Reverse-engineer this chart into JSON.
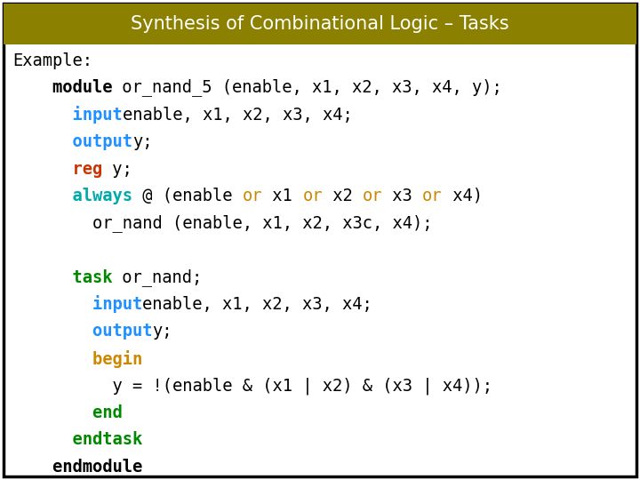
{
  "title": "Synthesis of Combinational Logic – Tasks",
  "title_bg_top": "#8B8000",
  "title_bg_bot": "#6B6000",
  "title_color": "#FFFFFF",
  "outer_bg": "#FFFFFF",
  "border_color": "#000000",
  "figsize": [
    7.2,
    5.4
  ],
  "dpi": 100,
  "fontsize": 13.5,
  "title_fontsize": 15,
  "lines": [
    [
      {
        "t": "Example:",
        "c": "#000000",
        "b": false
      }
    ],
    [
      {
        "t": "    module",
        "c": "#000000",
        "b": true
      },
      {
        "t": " or_nand_5 (enable, x1, x2, x3, x4, y);",
        "c": "#000000",
        "b": false
      }
    ],
    [
      {
        "t": "      input",
        "c": "#1E90FF",
        "b": true
      },
      {
        "t": "enable, x1, x2, x3, x4;",
        "c": "#000000",
        "b": false
      }
    ],
    [
      {
        "t": "      output",
        "c": "#1E90FF",
        "b": true
      },
      {
        "t": "y;",
        "c": "#000000",
        "b": false
      }
    ],
    [
      {
        "t": "      reg",
        "c": "#CC3300",
        "b": true
      },
      {
        "t": " y;",
        "c": "#000000",
        "b": false
      }
    ],
    [
      {
        "t": "      always",
        "c": "#00AAAA",
        "b": true
      },
      {
        "t": " @ (enable ",
        "c": "#000000",
        "b": false
      },
      {
        "t": "or",
        "c": "#CC8800",
        "b": false
      },
      {
        "t": " x1 ",
        "c": "#000000",
        "b": false
      },
      {
        "t": "or",
        "c": "#CC8800",
        "b": false
      },
      {
        "t": " x2 ",
        "c": "#000000",
        "b": false
      },
      {
        "t": "or",
        "c": "#CC8800",
        "b": false
      },
      {
        "t": " x3 ",
        "c": "#000000",
        "b": false
      },
      {
        "t": "or",
        "c": "#CC8800",
        "b": false
      },
      {
        "t": " x4)",
        "c": "#000000",
        "b": false
      }
    ],
    [
      {
        "t": "        or_nand (enable, x1, x2, x3c, x4);",
        "c": "#000000",
        "b": false
      }
    ],
    [
      {
        "t": ""
      }
    ],
    [
      {
        "t": "      task",
        "c": "#008800",
        "b": true
      },
      {
        "t": " or_nand;",
        "c": "#000000",
        "b": false
      }
    ],
    [
      {
        "t": "        input",
        "c": "#1E90FF",
        "b": true
      },
      {
        "t": "enable, x1, x2, x3, x4;",
        "c": "#000000",
        "b": false
      }
    ],
    [
      {
        "t": "        output",
        "c": "#1E90FF",
        "b": true
      },
      {
        "t": "y;",
        "c": "#000000",
        "b": false
      }
    ],
    [
      {
        "t": "        begin",
        "c": "#CC8800",
        "b": true
      }
    ],
    [
      {
        "t": "          y = !(enable & (x1 | x2) & (x3 | x4));",
        "c": "#000000",
        "b": false
      }
    ],
    [
      {
        "t": "        end",
        "c": "#008800",
        "b": true
      }
    ],
    [
      {
        "t": "      endtask",
        "c": "#008800",
        "b": true
      }
    ],
    [
      {
        "t": "    endmodule",
        "c": "#000000",
        "b": true
      }
    ]
  ]
}
